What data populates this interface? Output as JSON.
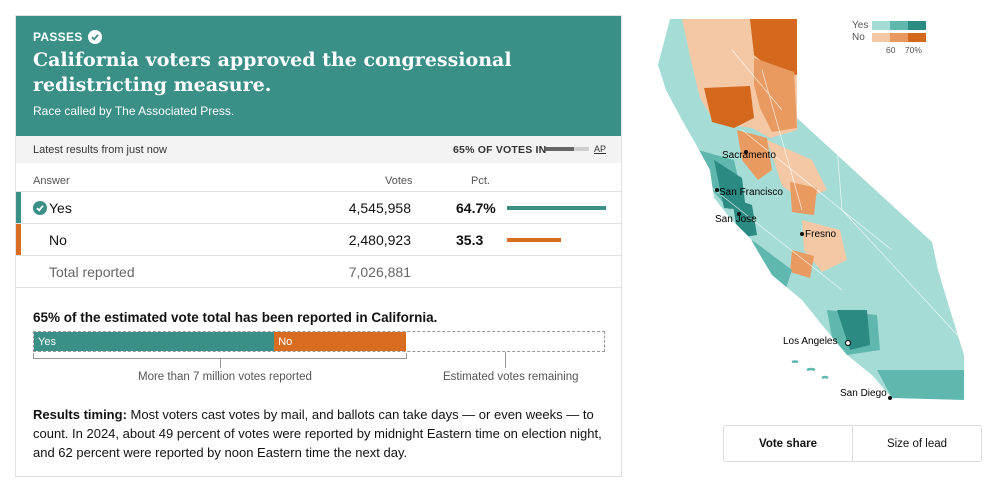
{
  "banner": {
    "status": "PASSES",
    "headline": "California voters approved the congressional redistricting measure.",
    "called_by": "Race called by The Associated Press."
  },
  "latest": {
    "updated": "Latest results from just now",
    "votes_in": "65% OF VOTES IN",
    "votes_in_fraction": 0.65,
    "source": "AP"
  },
  "table": {
    "headers": {
      "answer": "Answer",
      "votes": "Votes",
      "pct": "Pct."
    },
    "rows": [
      {
        "name": "Yes",
        "votes": "4,545,958",
        "pct": "64.7%",
        "pct_value": 64.7,
        "color": "#3a8f87",
        "winner": true
      },
      {
        "name": "No",
        "votes": "2,480,923",
        "pct": "35.3",
        "pct_value": 35.3,
        "color": "#d86d21",
        "winner": false
      }
    ],
    "total": {
      "label": "Total reported",
      "votes": "7,026,881"
    }
  },
  "estimate": {
    "title": "65% of the estimated vote total has been reported in California.",
    "yes_label": "Yes",
    "no_label": "No",
    "yes_share": 0.42,
    "no_share": 0.23,
    "reported_label": "More than 7 million votes reported",
    "remaining_label": "Estimated votes remaining"
  },
  "timing": {
    "label": "Results timing:",
    "text": "Most voters cast votes by mail, and ballots can take days — or even weeks — to count. In 2024, about 49 percent of votes were reported by midnight Eastern time on election night, and 62 percent were reported by noon Eastern time the next day."
  },
  "map": {
    "cities": [
      "Sacramento",
      "San Francisco",
      "San Jose",
      "Fresno",
      "Los Angeles",
      "San Diego"
    ],
    "legend": {
      "yes": "Yes",
      "no": "No",
      "tick_low": "60",
      "tick_high": "70%",
      "yes_colors": [
        "#a6dcd6",
        "#5fb7ae",
        "#2b8b82"
      ],
      "no_colors": [
        "#f4c8a5",
        "#e99a60",
        "#d4691e"
      ]
    }
  },
  "toggle": {
    "active": "Vote share",
    "other": "Size of lead"
  }
}
